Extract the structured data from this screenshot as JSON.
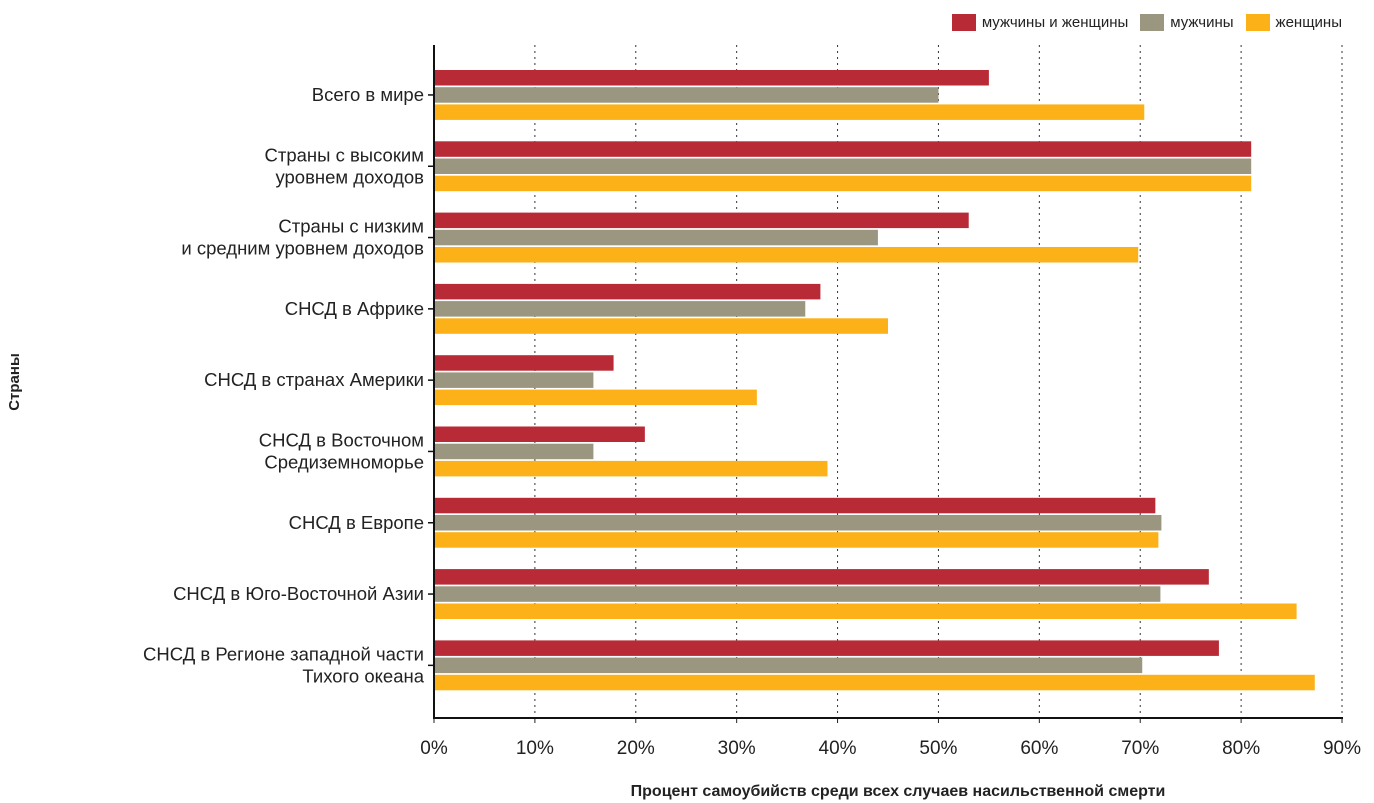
{
  "chart_data": {
    "type": "bar",
    "orientation": "horizontal",
    "xlabel": "Процент самоубийств среди всех случаев насильственной смерти",
    "ylabel": "Страны",
    "xlim": [
      0,
      90
    ],
    "x_ticks": [
      "0%",
      "10%",
      "20%",
      "30%",
      "40%",
      "50%",
      "60%",
      "70%",
      "80%",
      "90%"
    ],
    "grid": "vertical dotted",
    "legend_position": "top-right",
    "categories": [
      [
        "Всего в мире"
      ],
      [
        "Страны с высоким",
        "уровнем доходов"
      ],
      [
        "Страны с низким",
        "и средним уровнем доходов"
      ],
      [
        "СНСД в Африке"
      ],
      [
        "СНСД в странах Америки"
      ],
      [
        "СНСД в Восточном",
        "Средиземноморье"
      ],
      [
        "СНСД в Европе"
      ],
      [
        "СНСД в Юго-Восточной Азии"
      ],
      [
        "СНСД в Регионе западной части",
        "Тихого океана"
      ]
    ],
    "series": [
      {
        "name": "мужчины и женщины",
        "color": "#b82a35",
        "values": [
          55,
          81,
          53,
          38.3,
          17.8,
          20.9,
          71.5,
          76.8,
          77.8
        ]
      },
      {
        "name": "мужчины",
        "color": "#9a9680",
        "values": [
          50,
          81,
          44,
          36.8,
          15.8,
          15.8,
          72.1,
          72,
          70.2
        ]
      },
      {
        "name": "женщины",
        "color": "#fbb117",
        "values": [
          70.4,
          81,
          69.8,
          45,
          32,
          39,
          71.8,
          85.5,
          87.3
        ]
      }
    ]
  }
}
